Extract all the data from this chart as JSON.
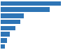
{
  "values": [
    35.0,
    28.5,
    13.5,
    11.5,
    8.5,
    5.5,
    3.5,
    2.5
  ],
  "bar_color": "#2e75b6",
  "background_color": "#ffffff",
  "grid_color": "#d9d9d9",
  "xlim": [
    0,
    40
  ],
  "figsize": [
    1.0,
    0.71
  ],
  "dpi": 100
}
